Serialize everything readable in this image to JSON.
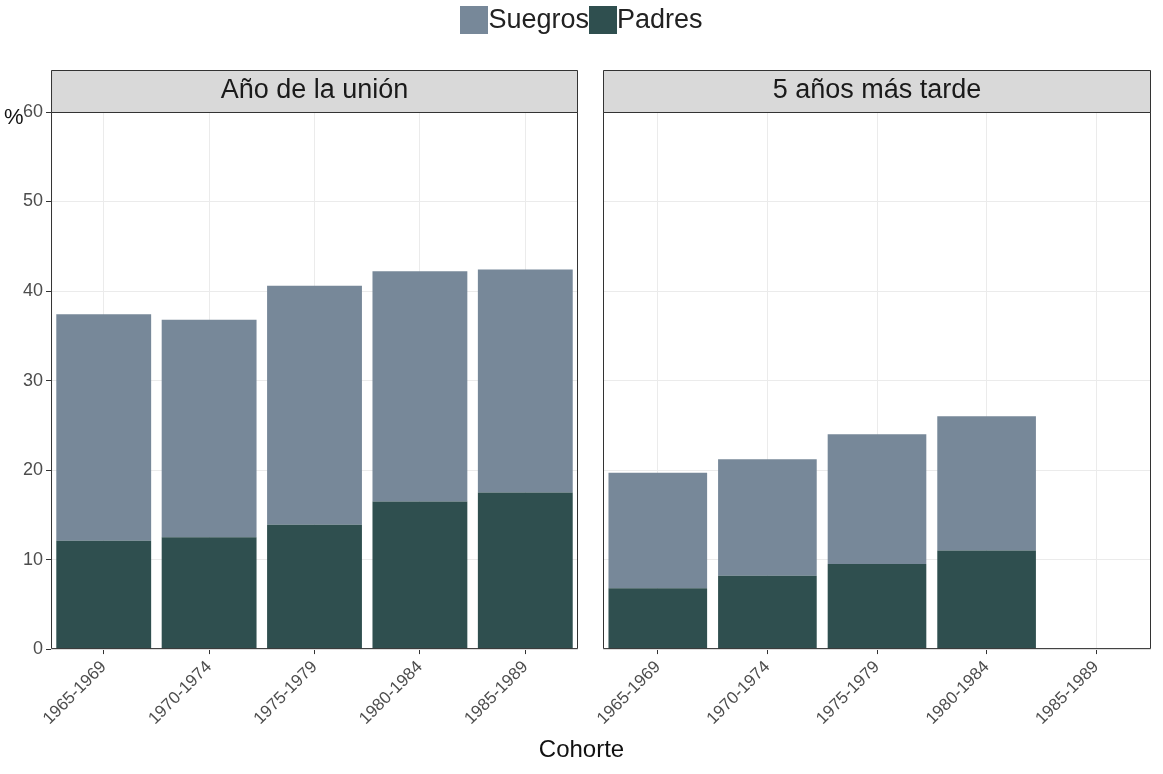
{
  "chart_data": [
    {
      "type": "bar",
      "title": "Año de la unión",
      "xlabel": "Cohorte",
      "ylabel": "%",
      "stacked": true,
      "grid": true,
      "legend": "top",
      "categories": [
        "1965-1969",
        "1970-1974",
        "1975-1979",
        "1980-1984",
        "1985-1989"
      ],
      "series": [
        {
          "name": "Padres",
          "color": "#2f4f4f",
          "values": [
            12.1,
            12.5,
            13.9,
            16.5,
            17.5
          ]
        },
        {
          "name": "Suegros",
          "color": "#778899",
          "values": [
            25.3,
            24.3,
            26.7,
            25.7,
            24.9
          ]
        }
      ],
      "ylim": [
        0,
        60
      ],
      "yticks": [
        0,
        10,
        20,
        30,
        40,
        50,
        60
      ]
    },
    {
      "type": "bar",
      "title": "5 años más tarde",
      "stacked": true,
      "grid": true,
      "tick_labels": "x",
      "categories": [
        "1965-1969",
        "1970-1974",
        "1975-1979",
        "1980-1984",
        "1985-1989"
      ],
      "series": [
        {
          "color": "#2f4f4f",
          "values": [
            6.8,
            8.2,
            9.5,
            11.0,
            null
          ]
        },
        {
          "color": "#778899",
          "values": [
            12.9,
            13.0,
            14.5,
            15.0,
            null
          ]
        }
      ],
      "ylim": [
        0,
        60
      ],
      "yticks": [
        0,
        10,
        20,
        30,
        40,
        50,
        60
      ]
    }
  ]
}
